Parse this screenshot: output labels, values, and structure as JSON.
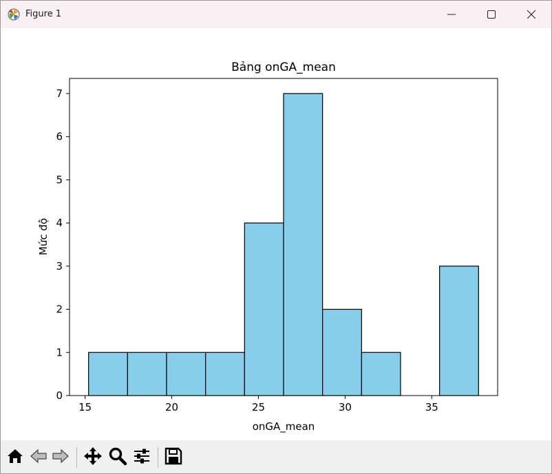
{
  "window": {
    "title": "Figure 1",
    "icon": "matplotlib-logo-icon",
    "controls": [
      "minimize-icon",
      "maximize-icon",
      "close-icon"
    ]
  },
  "toolbar": {
    "buttons": [
      "home-icon",
      "back-icon",
      "forward-icon",
      "pan-icon",
      "zoom-icon",
      "configure-subplots-icon",
      "save-icon"
    ]
  },
  "chart_data": {
    "type": "bar",
    "title": "Bảng onGA_mean",
    "xlabel": "onGA_mean",
    "ylabel": "Mức độ",
    "bins": [
      {
        "left": 15.2,
        "right": 17.45,
        "count": 1
      },
      {
        "left": 17.45,
        "right": 19.7,
        "count": 1
      },
      {
        "left": 19.7,
        "right": 21.95,
        "count": 1
      },
      {
        "left": 21.95,
        "right": 24.2,
        "count": 1
      },
      {
        "left": 24.2,
        "right": 26.45,
        "count": 4
      },
      {
        "left": 26.45,
        "right": 28.7,
        "count": 7
      },
      {
        "left": 28.7,
        "right": 30.95,
        "count": 2
      },
      {
        "left": 30.95,
        "right": 33.2,
        "count": 1
      },
      {
        "left": 33.2,
        "right": 35.45,
        "count": 0
      },
      {
        "left": 35.45,
        "right": 37.7,
        "count": 3
      }
    ],
    "xlim": [
      14.1,
      38.8
    ],
    "ylim": [
      0,
      7.35
    ],
    "xticks": [
      15,
      20,
      25,
      30,
      35
    ],
    "yticks": [
      0,
      1,
      2,
      3,
      4,
      5,
      6,
      7
    ],
    "bar_color": "#87ceeb",
    "edge_color": "#000000",
    "grid": false,
    "legend": "none"
  }
}
